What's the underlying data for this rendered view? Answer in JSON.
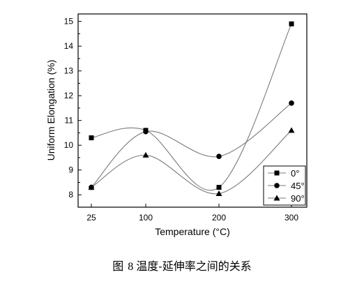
{
  "figure": {
    "caption_prefix": "图",
    "caption_number": "8",
    "caption_text": "温度-延伸率之间的关系"
  },
  "chart_data": {
    "type": "line",
    "title": "",
    "xlabel": "Temperature (°C)",
    "ylabel": "Uniform Elongation (%)",
    "categories": [
      "25",
      "100",
      "200",
      "300"
    ],
    "y_ticks": [
      "8",
      "9",
      "10",
      "11",
      "12",
      "13",
      "14",
      "15"
    ],
    "ylim": [
      7.5,
      15.3
    ],
    "grid": false,
    "smoothed": true,
    "legend_position": "bottom-right",
    "series": [
      {
        "name": "0°",
        "marker": "square",
        "values": [
          10.3,
          10.6,
          8.3,
          14.9
        ]
      },
      {
        "name": "45°",
        "marker": "circle",
        "values": [
          8.3,
          10.55,
          9.55,
          11.7
        ]
      },
      {
        "name": "90°",
        "marker": "triangle",
        "values": [
          8.3,
          9.6,
          8.05,
          10.6
        ]
      }
    ],
    "line_color": "#7a7a7a",
    "marker_color": "#000000"
  }
}
